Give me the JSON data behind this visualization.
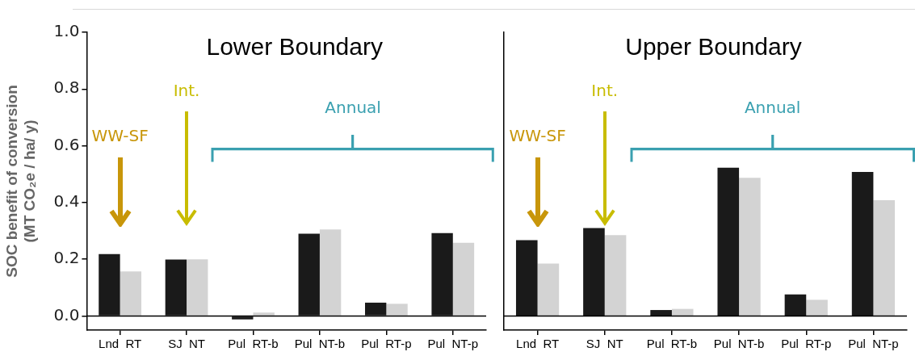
{
  "chart_data": [
    {
      "type": "bar",
      "title": "Lower Boundary",
      "ylabel": "SOC benefit of conversion\n(MT CO₂e / ha/ y)",
      "categories": [
        "Lnd  RT",
        "SJ  NT",
        "Pul  RT-b",
        "Pul  NT-b",
        "Pul  RT-p",
        "Pul  NT-p"
      ],
      "series": [
        {
          "color": "#1a1a1a",
          "values": [
            0.218,
            0.199,
            -0.012,
            0.29,
            0.047,
            0.292
          ]
        },
        {
          "color": "#d3d3d3",
          "values": [
            0.157,
            0.2,
            0.012,
            0.305,
            0.043,
            0.258
          ]
        }
      ],
      "ylim": [
        -0.05,
        1.0
      ],
      "yticks": [
        {
          "value": 0,
          "label": "0.0"
        },
        {
          "value": 0.2,
          "label": "0.2"
        },
        {
          "value": 0.4,
          "label": "0.4"
        },
        {
          "value": 0.6,
          "label": "0.6"
        },
        {
          "value": 0.8,
          "label": "0.8"
        },
        {
          "value": 1,
          "label": "1.0"
        }
      ],
      "ref_lines": [
        {
          "axis": "y",
          "value": 0,
          "color": "#000000"
        }
      ],
      "annotations": [
        "WW-SF",
        "Int.",
        "Annual"
      ],
      "grid": false,
      "legend": false
    },
    {
      "type": "bar",
      "title": "Upper Boundary",
      "categories": [
        "Lnd  RT",
        "SJ  NT",
        "Pul  RT-b",
        "Pul  NT-b",
        "Pul  RT-p",
        "Pul  NT-p"
      ],
      "series": [
        {
          "color": "#1a1a1a",
          "values": [
            0.267,
            0.31,
            0.021,
            0.523,
            0.076,
            0.508
          ]
        },
        {
          "color": "#d3d3d3",
          "values": [
            0.185,
            0.285,
            0.025,
            0.487,
            0.057,
            0.408
          ]
        }
      ],
      "ylim": [
        -0.05,
        1.0
      ],
      "yticks": [
        {
          "value": 0,
          "label": null
        },
        {
          "value": 0.2,
          "label": null
        },
        {
          "value": 0.4,
          "label": null
        },
        {
          "value": 0.6,
          "label": null
        },
        {
          "value": 0.8,
          "label": null
        },
        {
          "value": 1,
          "label": null
        }
      ],
      "ref_lines": [
        {
          "axis": "y",
          "value": 0,
          "color": "#000000"
        }
      ],
      "annotations": [
        "WW-SF",
        "Int.",
        "Annual"
      ],
      "tick_labels": "x",
      "grid": false,
      "legend": false
    }
  ]
}
